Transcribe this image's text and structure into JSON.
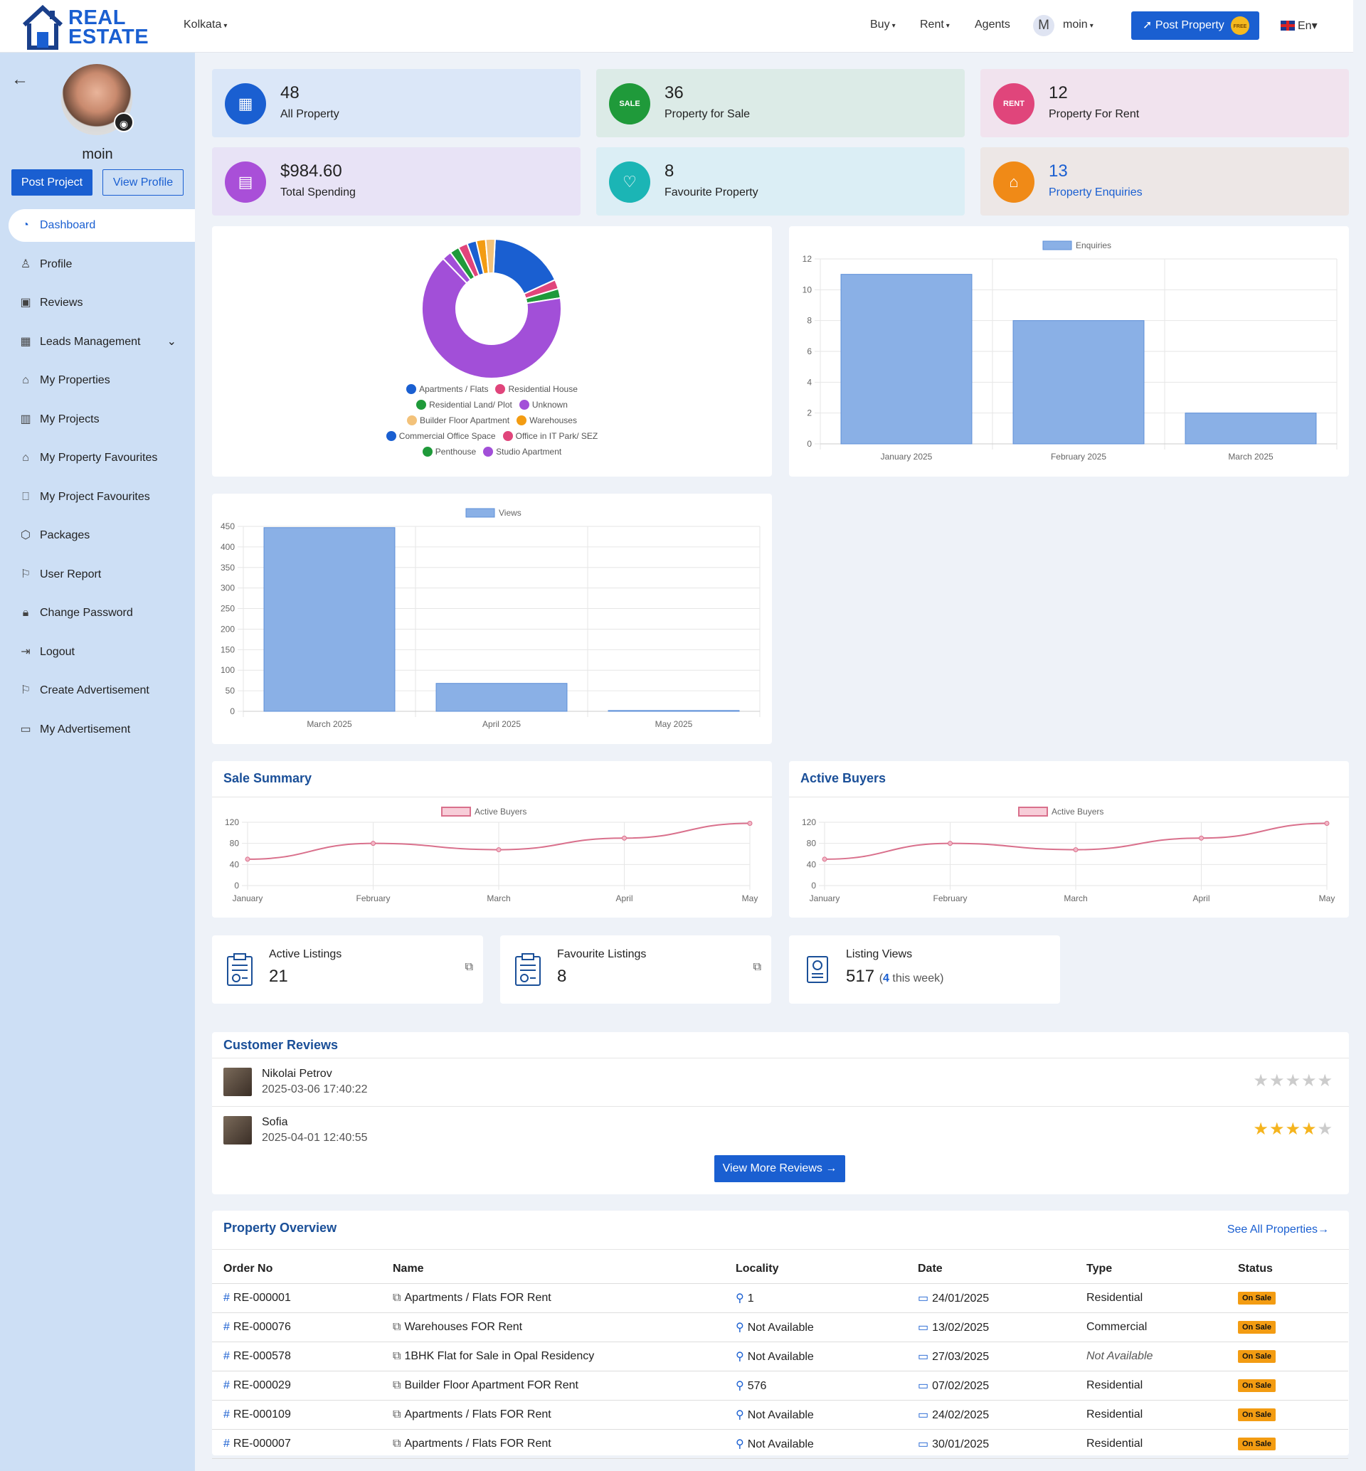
{
  "topbar": {
    "logo": {
      "line1": "REAL",
      "line2": "ESTATE"
    },
    "city": "Kolkata",
    "nav": [
      "Buy",
      "Rent",
      "Agents"
    ],
    "user": {
      "initial": "M",
      "name": "moin"
    },
    "post_property": "Post Property",
    "post_property_badge": "FREE",
    "language": "En"
  },
  "sidebar": {
    "username": "moin",
    "post_project": "Post Project",
    "view_profile": "View Profile",
    "items": [
      {
        "label": "Dashboard",
        "icon": "dashboard-icon"
      },
      {
        "label": "Profile",
        "icon": "user-icon"
      },
      {
        "label": "Reviews",
        "icon": "reviews-icon"
      },
      {
        "label": "Leads Management",
        "icon": "building-icon"
      },
      {
        "label": "My Properties",
        "icon": "house-icon"
      },
      {
        "label": "My Projects",
        "icon": "projects-icon"
      },
      {
        "label": "My Property Favourites",
        "icon": "house-heart-icon"
      },
      {
        "label": "My Project Favourites",
        "icon": "bookmark-icon"
      },
      {
        "label": "Packages",
        "icon": "box-icon"
      },
      {
        "label": "User Report",
        "icon": "flag-icon"
      },
      {
        "label": "Change Password",
        "icon": "lock-icon"
      },
      {
        "label": "Logout",
        "icon": "logout-icon"
      },
      {
        "label": "Create Advertisement",
        "icon": "flag-icon"
      },
      {
        "label": "My Advertisement",
        "icon": "ad-icon"
      }
    ]
  },
  "stats": [
    {
      "value": "48",
      "label": "All Property",
      "color": "#1a5fd1",
      "bg": "#dbe7f8",
      "icon": "building-icon"
    },
    {
      "value": "36",
      "label": "Property for Sale",
      "color": "#1f9a3a",
      "bg": "#dcebe7",
      "icon": "sale-sign-icon"
    },
    {
      "value": "12",
      "label": "Property For Rent",
      "color": "#e0457b",
      "bg": "#f1e3ee",
      "icon": "rent-sign-icon"
    },
    {
      "value": "$984.60",
      "label": "Total Spending",
      "color": "#a94fd8",
      "bg": "#e8e3f6",
      "icon": "wallet-icon"
    },
    {
      "value": "8",
      "label": "Favourite Property",
      "color": "#1bb5b5",
      "bg": "#dbeef5",
      "icon": "house-heart-icon"
    },
    {
      "value": "13",
      "label": "Property Enquiries",
      "color": "#f08a17",
      "bg": "#ede7e6",
      "icon": "home-icon"
    }
  ],
  "chart_data": [
    {
      "type": "pie",
      "title": "",
      "legend": [
        "Apartments / Flats",
        "Residential House",
        "Residential Land/ Plot",
        "Unknown",
        "Builder Floor Apartment",
        "Warehouses",
        "Commercial Office Space",
        "Office in IT Park/ SEZ",
        "Penthouse",
        "Studio Apartment"
      ],
      "colors": [
        "#1a5fd1",
        "#e0457b",
        "#1f9a3a",
        "#a24fd8",
        "#f3c27a",
        "#f39c12",
        "#1a5fd1",
        "#e0457b",
        "#1f9a3a",
        "#a24fd8"
      ],
      "values": [
        8,
        1,
        1,
        30,
        1,
        1,
        1,
        1,
        1,
        1
      ],
      "legend_position": "bottom"
    },
    {
      "type": "bar",
      "categories": [
        "January 2025",
        "February 2025",
        "March 2025"
      ],
      "series": [
        {
          "name": "Enquiries",
          "values": [
            11,
            8,
            2
          ]
        }
      ],
      "ylim": [
        0,
        12
      ],
      "yticks": [
        0,
        2,
        4,
        6,
        8,
        10,
        12
      ],
      "legend_position": "top"
    },
    {
      "type": "bar",
      "categories": [
        "March 2025",
        "April 2025",
        "May 2025"
      ],
      "series": [
        {
          "name": "Views",
          "values": [
            447,
            68,
            2
          ]
        }
      ],
      "ylim": [
        0,
        450
      ],
      "yticks": [
        0,
        50,
        100,
        150,
        200,
        250,
        300,
        350,
        400,
        450
      ],
      "legend_position": "top"
    },
    {
      "type": "line",
      "title": "Sale Summary",
      "x": [
        "January",
        "February",
        "March",
        "April",
        "May"
      ],
      "series": [
        {
          "name": "Active Buyers",
          "values": [
            50,
            80,
            68,
            90,
            118
          ]
        }
      ],
      "ylim": [
        0,
        120
      ],
      "yticks": [
        0,
        40,
        80,
        120
      ],
      "legend_position": "top"
    },
    {
      "type": "line",
      "title": "Active Buyers",
      "x": [
        "January",
        "February",
        "March",
        "April",
        "May"
      ],
      "series": [
        {
          "name": "Active Buyers",
          "values": [
            50,
            80,
            68,
            90,
            118
          ]
        }
      ],
      "ylim": [
        0,
        120
      ],
      "yticks": [
        0,
        40,
        80,
        120
      ],
      "legend_position": "top"
    }
  ],
  "mini_stats": [
    {
      "title": "Active Listings",
      "value": "21"
    },
    {
      "title": "Favourite Listings",
      "value": "8"
    },
    {
      "title": "Listing Views",
      "value": "517",
      "sub_open": "(",
      "sub_value": "4",
      "sub_text": "this week)"
    }
  ],
  "reviews": {
    "title": "Customer Reviews",
    "items": [
      {
        "name": "Nikolai Petrov",
        "date": "2025-03-06 17:40:22",
        "rating": 0
      },
      {
        "name": "Sofia",
        "date": "2025-04-01 12:40:55",
        "rating": 4
      }
    ],
    "more_button": "View More Reviews →"
  },
  "overview": {
    "title": "Property Overview",
    "see_all": "See All Properties→",
    "columns": [
      "Order No",
      "Name",
      "Locality",
      "Date",
      "Type",
      "Status"
    ],
    "rows": [
      {
        "order": "RE-000001",
        "name": "Apartments / Flats FOR Rent",
        "locality": "1",
        "date": "24/01/2025",
        "type": "Residential",
        "status": "On Sale"
      },
      {
        "order": "RE-000076",
        "name": "Warehouses FOR Rent",
        "locality": "Not Available",
        "date": "13/02/2025",
        "type": "Commercial",
        "status": "On Sale"
      },
      {
        "order": "RE-000578",
        "name": "1BHK Flat for Sale in Opal Residency",
        "locality": "Not Available",
        "date": "27/03/2025",
        "type": "Not Available",
        "status": "On Sale"
      },
      {
        "order": "RE-000029",
        "name": "Builder Floor Apartment FOR Rent",
        "locality": "576",
        "date": "07/02/2025",
        "type": "Residential",
        "status": "On Sale"
      },
      {
        "order": "RE-000109",
        "name": "Apartments / Flats FOR Rent",
        "locality": "Not Available",
        "date": "24/02/2025",
        "type": "Residential",
        "status": "On Sale"
      },
      {
        "order": "RE-000007",
        "name": "Apartments / Flats FOR Rent",
        "locality": "Not Available",
        "date": "30/01/2025",
        "type": "Residential",
        "status": "On Sale"
      }
    ]
  }
}
